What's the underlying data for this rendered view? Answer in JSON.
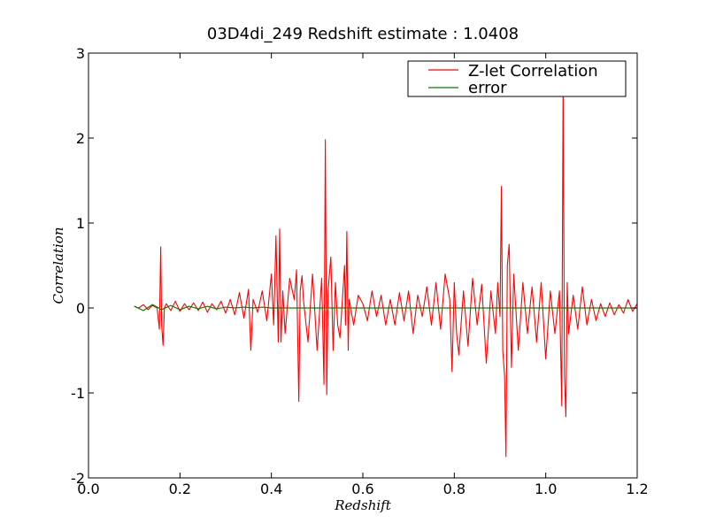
{
  "chart_data": {
    "type": "line",
    "title": "03D4di_249 Redshift estimate : 1.0408",
    "xlabel": "Redshift",
    "ylabel": "Correlation",
    "xlim": [
      0.0,
      1.2
    ],
    "ylim": [
      -2,
      3
    ],
    "xticks": [
      "0.0",
      "0.2",
      "0.4",
      "0.6",
      "0.8",
      "1.0",
      "1.2"
    ],
    "yticks": [
      "3",
      "2",
      "1",
      "0",
      "-1",
      "-2"
    ],
    "grid": false,
    "legend_position": "top-right",
    "estimate_marker": {
      "x": 1.0408,
      "y": 2.65,
      "shape": "triangle-down"
    },
    "series": [
      {
        "name": "Z-let Correlation",
        "color": "#ff0000",
        "x": [
          0.1,
          0.11,
          0.12,
          0.13,
          0.14,
          0.15,
          0.155,
          0.158,
          0.16,
          0.163,
          0.166,
          0.17,
          0.18,
          0.19,
          0.2,
          0.21,
          0.22,
          0.23,
          0.24,
          0.25,
          0.26,
          0.27,
          0.28,
          0.29,
          0.3,
          0.31,
          0.32,
          0.33,
          0.34,
          0.35,
          0.355,
          0.36,
          0.37,
          0.38,
          0.39,
          0.4,
          0.405,
          0.41,
          0.415,
          0.418,
          0.421,
          0.425,
          0.43,
          0.44,
          0.45,
          0.455,
          0.46,
          0.463,
          0.467,
          0.47,
          0.48,
          0.49,
          0.5,
          0.51,
          0.515,
          0.518,
          0.521,
          0.524,
          0.53,
          0.535,
          0.54,
          0.545,
          0.55,
          0.56,
          0.562,
          0.565,
          0.568,
          0.57,
          0.58,
          0.59,
          0.6,
          0.61,
          0.62,
          0.63,
          0.64,
          0.65,
          0.66,
          0.67,
          0.68,
          0.69,
          0.7,
          0.71,
          0.72,
          0.73,
          0.74,
          0.75,
          0.76,
          0.77,
          0.78,
          0.79,
          0.795,
          0.8,
          0.805,
          0.81,
          0.82,
          0.83,
          0.84,
          0.85,
          0.86,
          0.87,
          0.88,
          0.89,
          0.895,
          0.9,
          0.903,
          0.906,
          0.91,
          0.913,
          0.916,
          0.92,
          0.925,
          0.93,
          0.94,
          0.95,
          0.96,
          0.97,
          0.98,
          0.99,
          1.0,
          1.01,
          1.02,
          1.03,
          1.035,
          1.038,
          1.041,
          1.044,
          1.047,
          1.05,
          1.06,
          1.07,
          1.08,
          1.09,
          1.1,
          1.11,
          1.12,
          1.13,
          1.14,
          1.15,
          1.16,
          1.17,
          1.18,
          1.19,
          1.2
        ],
        "y": [
          0.02,
          0.0,
          0.04,
          -0.02,
          0.03,
          0.0,
          -0.25,
          0.72,
          -0.2,
          -0.44,
          0.0,
          0.05,
          -0.03,
          0.08,
          -0.04,
          0.05,
          -0.02,
          0.06,
          -0.03,
          0.07,
          -0.05,
          0.05,
          -0.02,
          0.08,
          -0.06,
          0.1,
          -0.08,
          0.18,
          -0.12,
          0.22,
          -0.5,
          0.1,
          -0.05,
          0.2,
          -0.15,
          0.4,
          -0.2,
          0.85,
          -0.4,
          0.93,
          -0.4,
          0.2,
          -0.3,
          0.35,
          0.1,
          0.45,
          -1.1,
          0.2,
          0.38,
          0.1,
          -0.4,
          0.4,
          -0.5,
          0.35,
          -0.9,
          1.98,
          -1.02,
          0.2,
          0.6,
          -0.5,
          0.3,
          -0.2,
          -0.35,
          0.5,
          -0.2,
          0.9,
          -0.5,
          0.1,
          -0.2,
          0.15,
          0.05,
          -0.15,
          0.2,
          -0.1,
          0.15,
          -0.2,
          0.1,
          -0.2,
          0.18,
          -0.15,
          0.2,
          -0.3,
          0.15,
          -0.1,
          0.25,
          -0.2,
          0.3,
          -0.25,
          0.4,
          0.1,
          -0.75,
          0.3,
          -0.3,
          -0.55,
          0.2,
          -0.45,
          0.35,
          -0.2,
          0.28,
          -0.65,
          0.2,
          -0.3,
          0.3,
          -0.1,
          1.43,
          -0.5,
          -0.8,
          -1.75,
          0.5,
          0.75,
          -0.7,
          0.4,
          -0.5,
          0.3,
          -0.3,
          0.25,
          -0.4,
          0.3,
          -0.6,
          0.2,
          -0.3,
          0.2,
          -1.15,
          2.65,
          -0.8,
          -1.28,
          0.3,
          -0.3,
          0.15,
          -0.25,
          0.25,
          -0.2,
          0.1,
          -0.15,
          0.05,
          -0.1,
          0.06,
          -0.08,
          0.04,
          -0.06,
          0.1,
          -0.04,
          0.05
        ]
      },
      {
        "name": "error",
        "color": "#008000",
        "x": [
          0.1,
          0.12,
          0.14,
          0.16,
          0.18,
          0.2,
          0.22,
          0.24,
          0.26,
          0.28,
          0.3,
          0.32,
          0.34,
          0.36,
          0.38,
          0.4,
          0.42,
          0.44,
          0.46,
          0.48,
          0.5,
          0.55,
          0.6,
          0.65,
          0.7,
          0.75,
          0.8,
          0.85,
          0.9,
          0.95,
          1.0,
          1.05,
          1.1,
          1.15,
          1.2
        ],
        "y": [
          0.02,
          -0.03,
          0.04,
          -0.02,
          0.03,
          -0.02,
          0.02,
          -0.01,
          0.02,
          -0.01,
          0.01,
          0.0,
          0.01,
          0.0,
          0.01,
          0.0,
          0.0,
          0.0,
          0.0,
          0.0,
          0.0,
          0.0,
          0.0,
          0.0,
          0.0,
          0.0,
          0.0,
          0.0,
          0.0,
          0.0,
          0.0,
          0.0,
          0.0,
          0.0,
          0.0
        ]
      }
    ]
  }
}
